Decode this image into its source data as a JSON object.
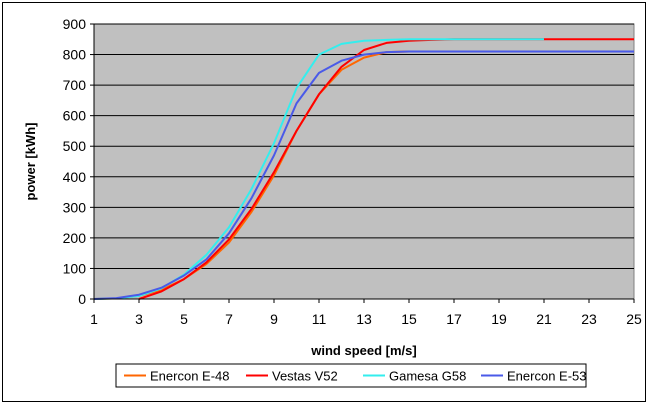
{
  "chart_data": {
    "type": "line",
    "title": "",
    "xlabel": "wind speed [m/s]",
    "ylabel": "power [kWh]",
    "xlim": [
      1,
      25
    ],
    "ylim": [
      0,
      900
    ],
    "x_ticks": [
      1,
      3,
      5,
      7,
      9,
      11,
      13,
      15,
      17,
      19,
      21,
      23,
      25
    ],
    "y_ticks": [
      0,
      100,
      200,
      300,
      400,
      500,
      600,
      700,
      800,
      900
    ],
    "grid": "horizontal",
    "plot_background": "#c0c0c0",
    "legend_position": "bottom",
    "series": [
      {
        "name": "Enercon E-48",
        "color": "#ff6600",
        "x": [
          1,
          2,
          3,
          4,
          5,
          6,
          7,
          8,
          9,
          10,
          11,
          12,
          13,
          14,
          15,
          16,
          17,
          18,
          19,
          20,
          21,
          22,
          23,
          24,
          25
        ],
        "y": [
          0,
          2,
          10,
          30,
          65,
          115,
          185,
          285,
          405,
          550,
          670,
          750,
          790,
          808,
          810,
          810,
          810,
          810,
          810,
          810,
          810,
          810,
          810,
          810,
          810
        ]
      },
      {
        "name": "Vestas V52",
        "color": "#ff0000",
        "x": [
          3,
          4,
          5,
          6,
          7,
          8,
          9,
          10,
          11,
          12,
          13,
          14,
          15,
          16,
          17,
          18,
          19,
          20,
          21,
          22,
          23,
          24,
          25
        ],
        "y": [
          0,
          25,
          65,
          120,
          195,
          295,
          415,
          550,
          670,
          760,
          815,
          838,
          845,
          848,
          850,
          850,
          850,
          850,
          850,
          850,
          850,
          850,
          850
        ]
      },
      {
        "name": "Gamesa G58",
        "color": "#33eeee",
        "x": [
          1,
          2,
          3,
          4,
          5,
          6,
          7,
          8,
          9,
          10,
          11,
          12,
          13,
          14,
          15,
          16,
          17,
          18,
          19,
          20,
          21
        ],
        "y": [
          0,
          2,
          10,
          35,
          80,
          145,
          235,
          360,
          510,
          690,
          800,
          835,
          845,
          848,
          850,
          850,
          850,
          850,
          850,
          850,
          850
        ]
      },
      {
        "name": "Enercon E-53",
        "color": "#4a5ae8",
        "x": [
          1,
          2,
          3,
          4,
          5,
          6,
          7,
          8,
          9,
          10,
          11,
          12,
          13,
          14,
          15,
          16,
          17,
          18,
          19,
          20,
          21,
          22,
          23,
          24,
          25
        ],
        "y": [
          0,
          3,
          14,
          37,
          77,
          130,
          215,
          330,
          470,
          640,
          740,
          780,
          800,
          808,
          810,
          810,
          810,
          810,
          810,
          810,
          810,
          810,
          810,
          810,
          810
        ]
      }
    ]
  }
}
